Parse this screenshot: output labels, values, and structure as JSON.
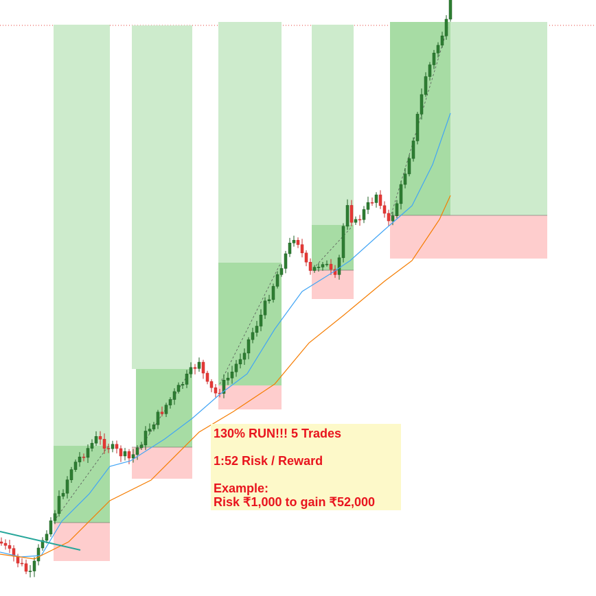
{
  "annotation": {
    "headline": "130% RUN!!! 5 Trades",
    "ratio": "1:52 Risk / Reward",
    "example_label": "Example:",
    "example_text": "Risk ₹1,000 to gain ₹52,000"
  }
}
